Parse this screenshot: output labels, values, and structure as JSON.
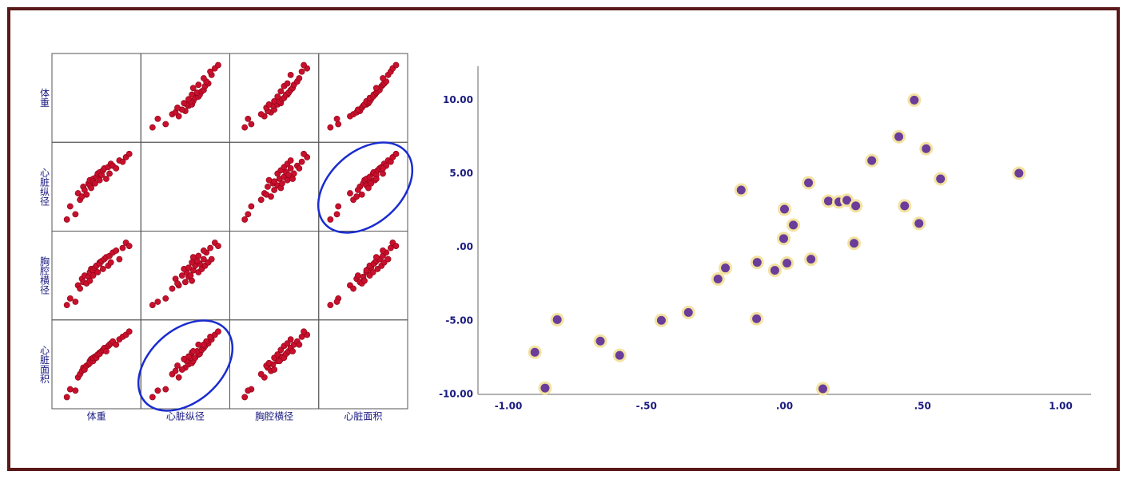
{
  "chart_data": [
    {
      "type": "scatter_matrix",
      "color": "#c8102e",
      "lim": [
        -8,
        108
      ],
      "variables": [
        {
          "name": "体重",
          "values": [
            5,
            10,
            18,
            22,
            25,
            28,
            30,
            32,
            35,
            38,
            40,
            40,
            42,
            45,
            45,
            48,
            50,
            52,
            55,
            55,
            58,
            60,
            62,
            65,
            68,
            70,
            72,
            75,
            80,
            85,
            90,
            95,
            100
          ]
        },
        {
          "name": "心脏纵径",
          "values": [
            0,
            20,
            8,
            40,
            30,
            35,
            50,
            45,
            38,
            55,
            52,
            60,
            48,
            62,
            58,
            55,
            65,
            70,
            60,
            72,
            68,
            75,
            78,
            62,
            80,
            70,
            85,
            82,
            78,
            90,
            88,
            95,
            100
          ]
        },
        {
          "name": "胸腔横径",
          "values": [
            5,
            15,
            10,
            35,
            30,
            45,
            40,
            50,
            38,
            48,
            55,
            42,
            60,
            58,
            50,
            62,
            65,
            55,
            70,
            68,
            72,
            60,
            75,
            78,
            65,
            80,
            70,
            85,
            88,
            75,
            92,
            100,
            95
          ]
        },
        {
          "name": "心脏面积",
          "values": [
            0,
            12,
            10,
            30,
            35,
            40,
            45,
            42,
            48,
            50,
            55,
            52,
            58,
            55,
            60,
            62,
            60,
            65,
            68,
            66,
            70,
            72,
            75,
            70,
            78,
            80,
            82,
            85,
            80,
            88,
            92,
            95,
            100
          ]
        }
      ]
    },
    {
      "type": "scatter",
      "color": "#6a3d9a",
      "edge_color": "#f3e3a0",
      "x": [
        -0.904,
        -0.867,
        -0.823,
        -0.667,
        -0.597,
        -0.446,
        -0.348,
        -0.241,
        -0.214,
        -0.157,
        -0.099,
        -0.101,
        -0.035,
        0,
        -0.003,
        0.009,
        0.032,
        0.087,
        0.096,
        0.139,
        0.159,
        0.197,
        0.226,
        0.258,
        0.252,
        0.316,
        0.414,
        0.435,
        0.47,
        0.487,
        0.513,
        0.565,
        0.849
      ],
      "values": [
        -7.14,
        -9.57,
        -4.92,
        -6.38,
        -7.35,
        -4.97,
        -4.43,
        -2.16,
        -1.41,
        3.89,
        -1.03,
        -4.86,
        -1.57,
        2.59,
        0.59,
        -1.08,
        1.51,
        4.38,
        -0.81,
        -9.62,
        3.14,
        3.08,
        3.19,
        2.81,
        0.27,
        5.89,
        7.51,
        2.81,
        10.0,
        1.62,
        6.7,
        4.65,
        5.03
      ],
      "xlim": [
        -1.11,
        1.11
      ],
      "ylim": [
        -10,
        12.3
      ],
      "xticks": [
        {
          "value": -1,
          "label": "-1.00"
        },
        {
          "value": -0.5,
          "label": "-.50"
        },
        {
          "value": 0,
          "label": ".00"
        },
        {
          "value": 0.5,
          "label": ".50"
        },
        {
          "value": 1,
          "label": "1.00"
        }
      ],
      "yticks": [
        {
          "value": -10,
          "label": "-10.00"
        },
        {
          "value": -5,
          "label": "-5.00"
        },
        {
          "value": 0,
          "label": ".00"
        },
        {
          "value": 5,
          "label": "5.00"
        },
        {
          "value": 10,
          "label": "10.00"
        }
      ],
      "grid": false
    }
  ]
}
